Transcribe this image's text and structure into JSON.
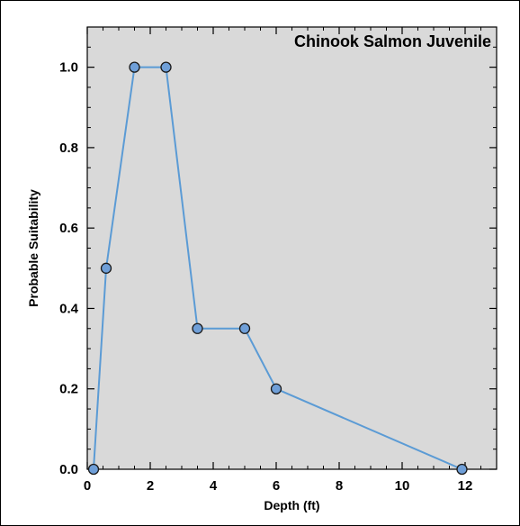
{
  "chart_data": {
    "type": "line",
    "title": "Chinook Salmon Juvenile",
    "xlabel": "Depth (ft)",
    "ylabel": "Probable Suitability",
    "xlim": [
      0,
      13
    ],
    "ylim": [
      0,
      1.1
    ],
    "x_ticks": [
      0,
      2,
      4,
      6,
      8,
      10,
      12
    ],
    "y_ticks": [
      0.0,
      0.2,
      0.4,
      0.6,
      0.8,
      1.0
    ],
    "y_tick_labels": [
      "0.0",
      "0.2",
      "0.4",
      "0.6",
      "0.8",
      "1.0"
    ],
    "grid": false,
    "legend": "none",
    "colors": {
      "plot_bg": "#d9d9d9",
      "line": "#5b9bd5",
      "marker_fill": "#6f9fd8",
      "marker_stroke": "#1a1a1a"
    },
    "series": [
      {
        "x": [
          0.2,
          0.6,
          1.5,
          2.5,
          3.5,
          5.0,
          6.0,
          11.9
        ],
        "y": [
          0.0,
          0.5,
          1.0,
          1.0,
          0.35,
          0.35,
          0.2,
          0.0
        ]
      }
    ]
  }
}
